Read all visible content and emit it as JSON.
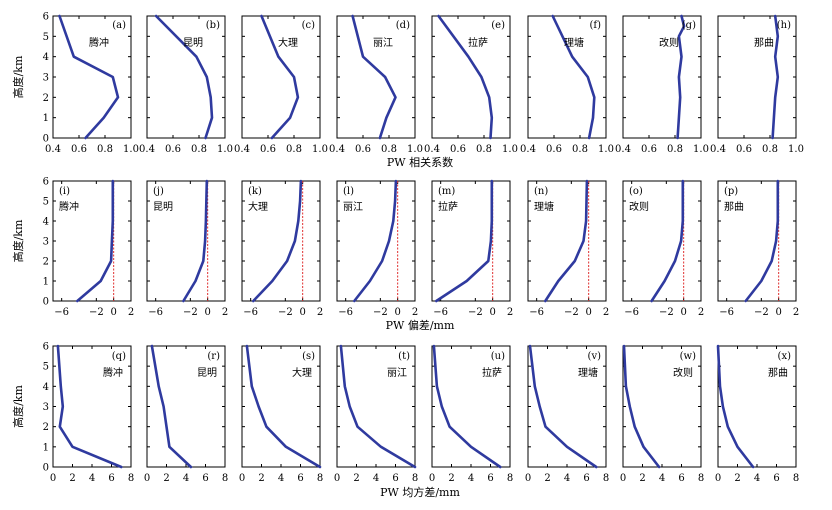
{
  "chart_data": [
    {
      "type": "line",
      "row_title": "PW 相关系数",
      "ylabel": "高度/km",
      "xlim": [
        0.4,
        1.0
      ],
      "xticks": [
        "0.4",
        "0.6",
        "0.8",
        "1.0"
      ],
      "ylim": [
        0,
        6
      ],
      "yticks": [
        "0",
        "1",
        "2",
        "3",
        "4",
        "5",
        "6"
      ],
      "reference_x": null,
      "panels": [
        {
          "label": "(a)",
          "city": "腾冲",
          "x": [
            0.65,
            0.79,
            0.9,
            0.86,
            0.56,
            0.45
          ],
          "y": [
            0,
            1,
            2,
            3,
            4,
            6
          ]
        },
        {
          "label": "(b)",
          "city": "昆明",
          "x": [
            0.85,
            0.9,
            0.89,
            0.86,
            0.78,
            0.47
          ],
          "y": [
            0,
            1,
            2,
            3,
            4,
            6
          ]
        },
        {
          "label": "(c)",
          "city": "大理",
          "x": [
            0.63,
            0.77,
            0.83,
            0.8,
            0.68,
            0.55
          ],
          "y": [
            0,
            1,
            2,
            3,
            4,
            6
          ]
        },
        {
          "label": "(d)",
          "city": "丽江",
          "x": [
            0.73,
            0.78,
            0.85,
            0.77,
            0.6,
            0.52
          ],
          "y": [
            0,
            1,
            2,
            3,
            4,
            6
          ]
        },
        {
          "label": "(e)",
          "city": "拉萨",
          "x": [
            0.85,
            0.86,
            0.84,
            0.78,
            0.68,
            0.45
          ],
          "y": [
            0,
            1,
            2,
            3,
            4,
            6
          ]
        },
        {
          "label": "(f)",
          "city": "理塘",
          "x": [
            0.87,
            0.9,
            0.91,
            0.86,
            0.74,
            0.59
          ],
          "y": [
            0,
            1,
            2,
            3,
            4,
            6
          ]
        },
        {
          "label": "(g)",
          "city": "改则",
          "x": [
            0.82,
            0.83,
            0.84,
            0.83,
            0.85,
            0.83,
            0.87,
            0.85
          ],
          "y": [
            0,
            1,
            2,
            3,
            4,
            5,
            5.5,
            6
          ]
        },
        {
          "label": "(h)",
          "city": "那曲",
          "x": [
            0.82,
            0.83,
            0.84,
            0.86,
            0.84,
            0.86,
            0.84
          ],
          "y": [
            0,
            1,
            2,
            3,
            4,
            5,
            6
          ]
        }
      ]
    },
    {
      "type": "line",
      "row_title": "PW 偏差/mm",
      "ylabel": "高度/km",
      "xlim": [
        -7,
        2
      ],
      "xticks": [
        "−6",
        "−2",
        "0",
        "2"
      ],
      "ytick_values": [
        0,
        1,
        2,
        3,
        4,
        5,
        6
      ],
      "ylim": [
        0,
        6
      ],
      "yticks": [
        "0",
        "1",
        "2",
        "3",
        "4",
        "5",
        "6"
      ],
      "reference_x": 0,
      "panels": [
        {
          "label": "(i)",
          "city": "腾冲",
          "x": [
            -4.2,
            -1.5,
            -0.3,
            -0.2,
            -0.1,
            -0.1
          ],
          "y": [
            0,
            1,
            2,
            3,
            4,
            6
          ]
        },
        {
          "label": "(j)",
          "city": "昆明",
          "x": [
            -2.8,
            -1.4,
            -0.5,
            -0.3,
            -0.2,
            -0.1
          ],
          "y": [
            0,
            1,
            2,
            3,
            4,
            6
          ]
        },
        {
          "label": "(k)",
          "city": "大理",
          "x": [
            -5.7,
            -3.5,
            -1.8,
            -0.9,
            -0.5,
            -0.3,
            -0.2
          ],
          "y": [
            0,
            1,
            2,
            3,
            4,
            5,
            6
          ]
        },
        {
          "label": "(l)",
          "city": "丽江",
          "x": [
            -5.0,
            -3.2,
            -1.8,
            -1.0,
            -0.5,
            -0.3,
            -0.2
          ],
          "y": [
            0,
            1,
            2,
            3,
            4,
            5,
            6
          ]
        },
        {
          "label": "(m)",
          "city": "拉萨",
          "x": [
            -6.5,
            -3.0,
            -0.5,
            -0.2,
            -0.1,
            -0.1
          ],
          "y": [
            0,
            1,
            2,
            3,
            4,
            6
          ]
        },
        {
          "label": "(n)",
          "city": "理塘",
          "x": [
            -5.0,
            -3.5,
            -1.6,
            -0.6,
            -0.3,
            -0.2
          ],
          "y": [
            0,
            1,
            2,
            3,
            4,
            6
          ]
        },
        {
          "label": "(o)",
          "city": "改则",
          "x": [
            -3.7,
            -2.2,
            -1.0,
            -0.3,
            -0.1,
            -0.1
          ],
          "y": [
            0,
            1,
            2,
            3,
            4,
            6
          ]
        },
        {
          "label": "(p)",
          "city": "那曲",
          "x": [
            -3.8,
            -2.0,
            -0.8,
            -0.3,
            -0.1,
            -0.1
          ],
          "y": [
            0,
            1,
            2,
            3,
            4,
            6
          ]
        }
      ]
    },
    {
      "type": "line",
      "row_title": "PW 均方差/mm",
      "ylabel": "高度/km",
      "xlim": [
        0,
        8
      ],
      "xticks": [
        "0",
        "2",
        "4",
        "6",
        "8"
      ],
      "ylim": [
        0,
        6
      ],
      "yticks": [
        "0",
        "1",
        "2",
        "3",
        "4",
        "5",
        "6"
      ],
      "reference_x": null,
      "panels": [
        {
          "label": "(q)",
          "city": "腾冲",
          "x": [
            7.0,
            2.0,
            0.7,
            1.0,
            0.8,
            0.5
          ],
          "y": [
            0,
            1,
            2,
            3,
            4,
            6
          ]
        },
        {
          "label": "(r)",
          "city": "昆明",
          "x": [
            4.5,
            2.3,
            2.0,
            1.7,
            1.2,
            0.5
          ],
          "y": [
            0,
            1,
            2,
            3,
            4,
            6
          ]
        },
        {
          "label": "(s)",
          "city": "大理",
          "x": [
            8.0,
            4.5,
            2.5,
            1.7,
            1.0,
            0.5
          ],
          "y": [
            0,
            1,
            2,
            3,
            4,
            6
          ]
        },
        {
          "label": "(t)",
          "city": "丽江",
          "x": [
            8.0,
            4.5,
            2.1,
            1.3,
            0.8,
            0.4
          ],
          "y": [
            0,
            1,
            2,
            3,
            4,
            6
          ]
        },
        {
          "label": "(u)",
          "city": "拉萨",
          "x": [
            7.0,
            4.0,
            1.8,
            1.0,
            0.5,
            0.2
          ],
          "y": [
            0,
            1,
            2,
            3,
            4,
            6
          ]
        },
        {
          "label": "(v)",
          "city": "理塘",
          "x": [
            7.0,
            4.0,
            1.8,
            1.2,
            0.7,
            0.2
          ],
          "y": [
            0,
            1,
            2,
            3,
            4,
            6
          ]
        },
        {
          "label": "(w)",
          "city": "改则",
          "x": [
            3.7,
            2.1,
            1.2,
            0.7,
            0.3,
            0.1
          ],
          "y": [
            0,
            1,
            2,
            3,
            4,
            6
          ]
        },
        {
          "label": "(x)",
          "city": "那曲",
          "x": [
            3.6,
            2.0,
            1.0,
            0.5,
            0.2,
            0.0
          ],
          "y": [
            0,
            1,
            2,
            3,
            4,
            6
          ]
        }
      ]
    }
  ],
  "colors": {
    "curve": "#2f3a9f",
    "reference": "#e03030",
    "axis": "#000000"
  }
}
